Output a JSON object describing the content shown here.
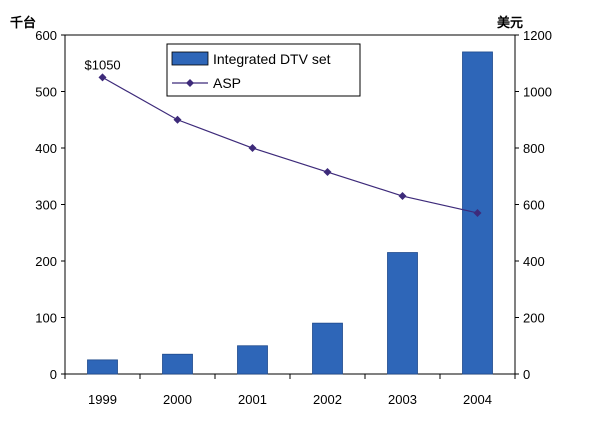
{
  "chart_data": {
    "type": "bar",
    "categories": [
      "1999",
      "2000",
      "2001",
      "2002",
      "2003",
      "2004"
    ],
    "series": [
      {
        "name": "Integrated DTV set",
        "type": "bar",
        "axis": "left",
        "values": [
          25,
          35,
          50,
          90,
          215,
          570
        ],
        "color": "#2e66b8"
      },
      {
        "name": "ASP",
        "type": "line",
        "axis": "right",
        "values": [
          1050,
          900,
          800,
          715,
          630,
          570
        ],
        "color": "#3d2a7a"
      }
    ],
    "y_left": {
      "unit_label": "千台",
      "ylim": [
        0,
        600
      ],
      "ticks": [
        "0",
        "100",
        "200",
        "300",
        "400",
        "500",
        "600"
      ]
    },
    "y_right": {
      "unit_label": "美元",
      "ylim": [
        0,
        1200
      ],
      "ticks": [
        "0",
        "200",
        "400",
        "600",
        "800",
        "1000",
        "1200"
      ]
    },
    "annotations": [
      {
        "text": "$1050",
        "series": "ASP",
        "category": "1999"
      }
    ],
    "legend": {
      "placement": "top-center",
      "bar_label": "Integrated DTV set",
      "line_label": "ASP"
    },
    "grid": false
  }
}
